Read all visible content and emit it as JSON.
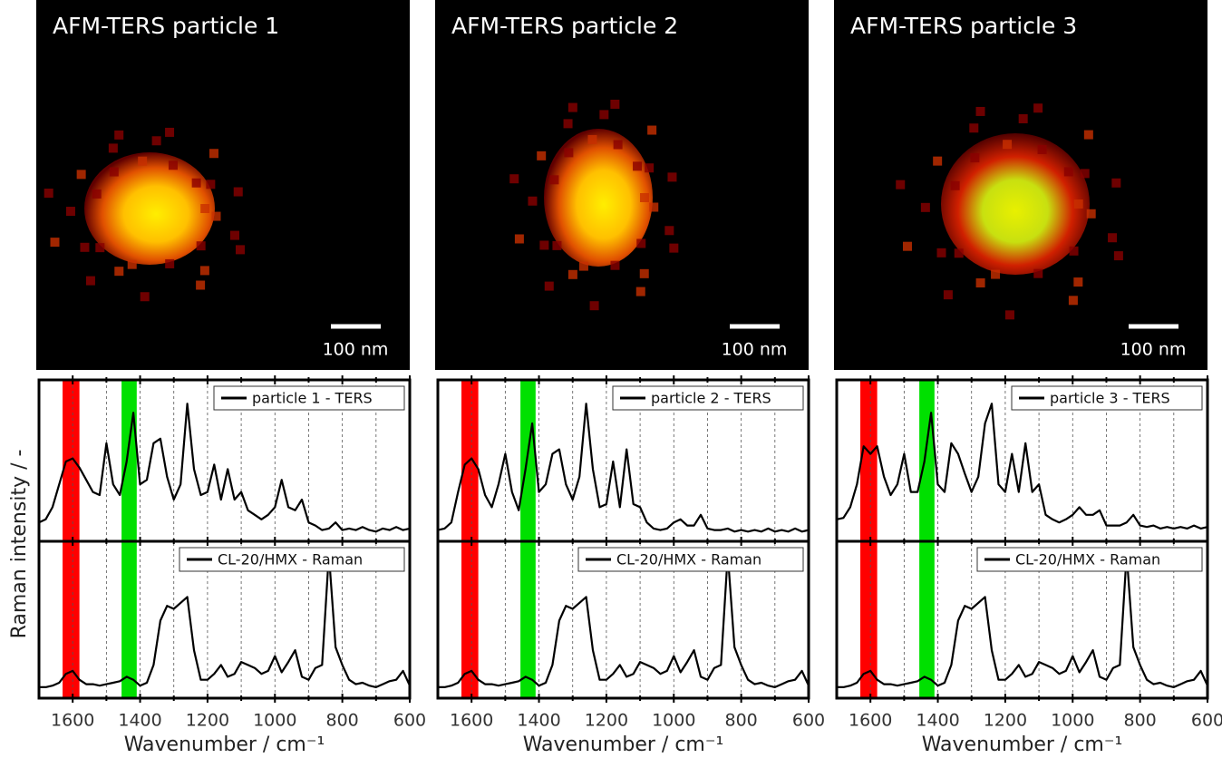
{
  "figure": {
    "ylabel": "Raman intensity / -"
  },
  "chart_data": [
    {
      "type": "line",
      "title": "AFM-TERS particle 1",
      "scale_bar": "100 nm",
      "xlabel": "Wavenumber / cm⁻¹",
      "xlim": [
        1700,
        600
      ],
      "xticks": [
        1600,
        1400,
        1200,
        1000,
        800,
        600
      ],
      "minor_xticks": [
        1500,
        1300,
        1100,
        900,
        700
      ],
      "grid": true,
      "ylim": [
        0,
        1
      ],
      "bands": [
        {
          "range": [
            1630,
            1580
          ],
          "color": "#ff0000"
        },
        {
          "range": [
            1455,
            1410
          ],
          "color": "#00e000"
        }
      ],
      "x": [
        1700,
        1680,
        1660,
        1640,
        1620,
        1600,
        1580,
        1560,
        1540,
        1520,
        1500,
        1480,
        1460,
        1440,
        1420,
        1400,
        1380,
        1360,
        1340,
        1320,
        1300,
        1280,
        1260,
        1240,
        1220,
        1200,
        1180,
        1160,
        1140,
        1120,
        1100,
        1080,
        1060,
        1040,
        1020,
        1000,
        980,
        960,
        940,
        920,
        900,
        880,
        860,
        840,
        820,
        800,
        780,
        760,
        740,
        720,
        700,
        680,
        660,
        640,
        620,
        600
      ],
      "series": [
        {
          "name": "particle 1 - TERS",
          "color": "#000000",
          "values": [
            0.1,
            0.12,
            0.2,
            0.35,
            0.5,
            0.52,
            0.46,
            0.38,
            0.3,
            0.28,
            0.62,
            0.35,
            0.28,
            0.5,
            0.82,
            0.35,
            0.38,
            0.62,
            0.65,
            0.4,
            0.25,
            0.35,
            0.88,
            0.45,
            0.28,
            0.3,
            0.48,
            0.25,
            0.45,
            0.25,
            0.3,
            0.18,
            0.15,
            0.12,
            0.15,
            0.2,
            0.38,
            0.2,
            0.18,
            0.25,
            0.1,
            0.08,
            0.05,
            0.06,
            0.1,
            0.05,
            0.06,
            0.05,
            0.07,
            0.05,
            0.04,
            0.06,
            0.05,
            0.07,
            0.05,
            0.06
          ]
        },
        {
          "name": "CL-20/HMX - Raman",
          "color": "#000000",
          "values": [
            0.05,
            0.05,
            0.06,
            0.08,
            0.14,
            0.16,
            0.1,
            0.07,
            0.07,
            0.06,
            0.07,
            0.08,
            0.09,
            0.12,
            0.1,
            0.06,
            0.08,
            0.2,
            0.5,
            0.6,
            0.58,
            0.62,
            0.66,
            0.3,
            0.1,
            0.1,
            0.14,
            0.2,
            0.12,
            0.14,
            0.22,
            0.2,
            0.18,
            0.14,
            0.16,
            0.26,
            0.15,
            0.22,
            0.3,
            0.12,
            0.1,
            0.18,
            0.2,
            0.95,
            0.32,
            0.2,
            0.1,
            0.07,
            0.08,
            0.06,
            0.05,
            0.07,
            0.09,
            0.1,
            0.16,
            0.06
          ]
        }
      ]
    },
    {
      "type": "line",
      "title": "AFM-TERS particle 2",
      "scale_bar": "100 nm",
      "xlabel": "Wavenumber / cm⁻¹",
      "xlim": [
        1700,
        600
      ],
      "xticks": [
        1600,
        1400,
        1200,
        1000,
        800,
        600
      ],
      "minor_xticks": [
        1500,
        1300,
        1100,
        900,
        700
      ],
      "grid": true,
      "ylim": [
        0,
        1
      ],
      "bands": [
        {
          "range": [
            1630,
            1580
          ],
          "color": "#ff0000"
        },
        {
          "range": [
            1455,
            1410
          ],
          "color": "#00e000"
        }
      ],
      "x": [
        1700,
        1680,
        1660,
        1640,
        1620,
        1600,
        1580,
        1560,
        1540,
        1520,
        1500,
        1480,
        1460,
        1440,
        1420,
        1400,
        1380,
        1360,
        1340,
        1320,
        1300,
        1280,
        1260,
        1240,
        1220,
        1200,
        1180,
        1160,
        1140,
        1120,
        1100,
        1080,
        1060,
        1040,
        1020,
        1000,
        980,
        960,
        940,
        920,
        900,
        880,
        860,
        840,
        820,
        800,
        780,
        760,
        740,
        720,
        700,
        680,
        660,
        640,
        620,
        600
      ],
      "series": [
        {
          "name": "particle 2 - TERS",
          "color": "#000000",
          "values": [
            0.05,
            0.06,
            0.1,
            0.3,
            0.48,
            0.52,
            0.45,
            0.28,
            0.2,
            0.35,
            0.55,
            0.3,
            0.18,
            0.45,
            0.75,
            0.3,
            0.35,
            0.55,
            0.58,
            0.35,
            0.25,
            0.4,
            0.88,
            0.45,
            0.2,
            0.22,
            0.5,
            0.2,
            0.58,
            0.22,
            0.2,
            0.1,
            0.06,
            0.05,
            0.06,
            0.1,
            0.12,
            0.08,
            0.08,
            0.15,
            0.06,
            0.05,
            0.05,
            0.06,
            0.04,
            0.05,
            0.04,
            0.05,
            0.04,
            0.06,
            0.04,
            0.05,
            0.04,
            0.06,
            0.04,
            0.05
          ]
        },
        {
          "name": "CL-20/HMX - Raman",
          "color": "#000000",
          "values": [
            0.05,
            0.05,
            0.06,
            0.08,
            0.14,
            0.16,
            0.1,
            0.07,
            0.07,
            0.06,
            0.07,
            0.08,
            0.09,
            0.12,
            0.1,
            0.06,
            0.08,
            0.2,
            0.5,
            0.6,
            0.58,
            0.62,
            0.66,
            0.3,
            0.1,
            0.1,
            0.14,
            0.2,
            0.12,
            0.14,
            0.22,
            0.2,
            0.18,
            0.14,
            0.16,
            0.26,
            0.15,
            0.22,
            0.3,
            0.12,
            0.1,
            0.18,
            0.2,
            0.95,
            0.32,
            0.2,
            0.1,
            0.07,
            0.08,
            0.06,
            0.05,
            0.07,
            0.09,
            0.1,
            0.16,
            0.06
          ]
        }
      ]
    },
    {
      "type": "line",
      "title": "AFM-TERS particle 3",
      "scale_bar": "100 nm",
      "xlabel": "Wavenumber / cm⁻¹",
      "xlim": [
        1700,
        600
      ],
      "xticks": [
        1600,
        1400,
        1200,
        1000,
        800,
        600
      ],
      "minor_xticks": [
        1500,
        1300,
        1100,
        900,
        700
      ],
      "grid": true,
      "ylim": [
        0,
        1
      ],
      "bands": [
        {
          "range": [
            1630,
            1580
          ],
          "color": "#ff0000"
        },
        {
          "range": [
            1455,
            1410
          ],
          "color": "#00e000"
        }
      ],
      "x": [
        1700,
        1680,
        1660,
        1640,
        1620,
        1600,
        1580,
        1560,
        1540,
        1520,
        1500,
        1480,
        1460,
        1440,
        1420,
        1400,
        1380,
        1360,
        1340,
        1320,
        1300,
        1280,
        1260,
        1240,
        1220,
        1200,
        1180,
        1160,
        1140,
        1120,
        1100,
        1080,
        1060,
        1040,
        1020,
        1000,
        980,
        960,
        940,
        920,
        900,
        880,
        860,
        840,
        820,
        800,
        780,
        760,
        740,
        720,
        700,
        680,
        660,
        640,
        620,
        600
      ],
      "series": [
        {
          "name": "particle 3 - TERS",
          "color": "#000000",
          "values": [
            0.12,
            0.13,
            0.2,
            0.35,
            0.6,
            0.55,
            0.6,
            0.4,
            0.28,
            0.35,
            0.55,
            0.3,
            0.3,
            0.5,
            0.82,
            0.35,
            0.3,
            0.62,
            0.55,
            0.42,
            0.3,
            0.4,
            0.75,
            0.88,
            0.35,
            0.3,
            0.55,
            0.3,
            0.62,
            0.3,
            0.35,
            0.15,
            0.12,
            0.1,
            0.12,
            0.15,
            0.2,
            0.15,
            0.15,
            0.18,
            0.08,
            0.08,
            0.08,
            0.1,
            0.15,
            0.08,
            0.07,
            0.08,
            0.06,
            0.07,
            0.06,
            0.07,
            0.06,
            0.08,
            0.06,
            0.07
          ]
        },
        {
          "name": "CL-20/HMX - Raman",
          "color": "#000000",
          "values": [
            0.05,
            0.05,
            0.06,
            0.08,
            0.14,
            0.16,
            0.1,
            0.07,
            0.07,
            0.06,
            0.07,
            0.08,
            0.09,
            0.12,
            0.1,
            0.06,
            0.08,
            0.2,
            0.5,
            0.6,
            0.58,
            0.62,
            0.66,
            0.3,
            0.1,
            0.1,
            0.14,
            0.2,
            0.12,
            0.14,
            0.22,
            0.2,
            0.18,
            0.14,
            0.16,
            0.26,
            0.15,
            0.22,
            0.3,
            0.12,
            0.1,
            0.18,
            0.2,
            0.95,
            0.32,
            0.2,
            0.1,
            0.07,
            0.08,
            0.06,
            0.05,
            0.07,
            0.09,
            0.1,
            0.16,
            0.06
          ]
        }
      ]
    }
  ]
}
